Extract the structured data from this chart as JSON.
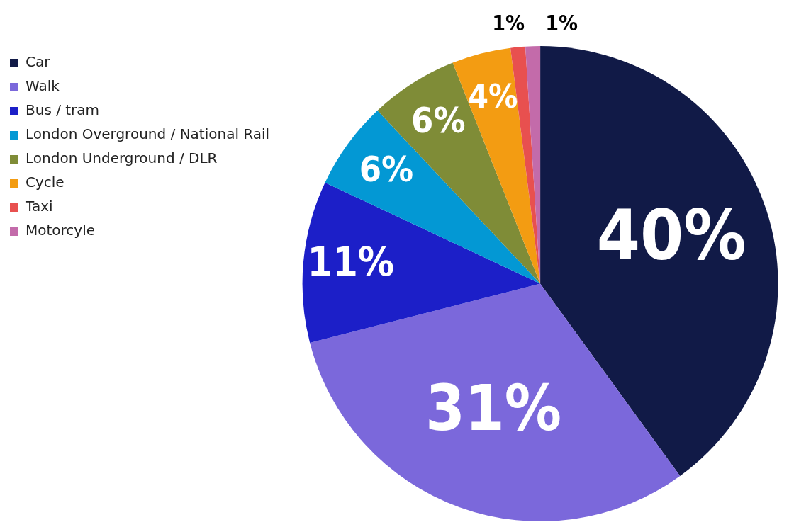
{
  "chart_data": {
    "type": "pie",
    "categories": [
      "Car",
      "Walk",
      "Bus / tram",
      "London Overground / National Rail",
      "London Underground / DLR",
      "Cycle",
      "Taxi",
      "Motorcyle"
    ],
    "values": [
      40,
      31,
      11,
      6,
      6,
      4,
      1,
      1
    ],
    "colors": [
      "#111a47",
      "#7b68db",
      "#1c1fc8",
      "#0398d4",
      "#7f8c37",
      "#f39c12",
      "#e8504f",
      "#c36baa"
    ],
    "value_labels": [
      "40%",
      "31%",
      "11%",
      "6%",
      "6%",
      "4%",
      "1%",
      "1%"
    ],
    "legend": "top left"
  }
}
